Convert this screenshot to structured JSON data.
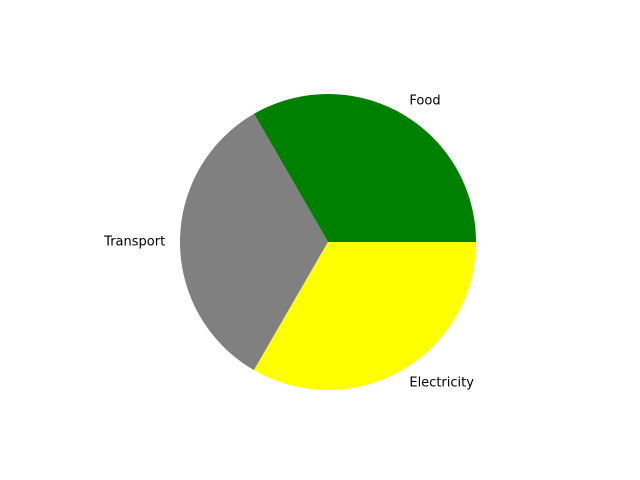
{
  "chart_data": {
    "type": "pie",
    "title": "",
    "slices": [
      {
        "label": "Food",
        "value": 33.33,
        "color": "#008000"
      },
      {
        "label": "Transport",
        "value": 33.33,
        "color": "#808080"
      },
      {
        "label": "Electricity",
        "value": 33.34,
        "color": "#ffff00"
      }
    ],
    "start_angle_deg": 0,
    "direction": "counterclockwise",
    "legend": "none"
  }
}
